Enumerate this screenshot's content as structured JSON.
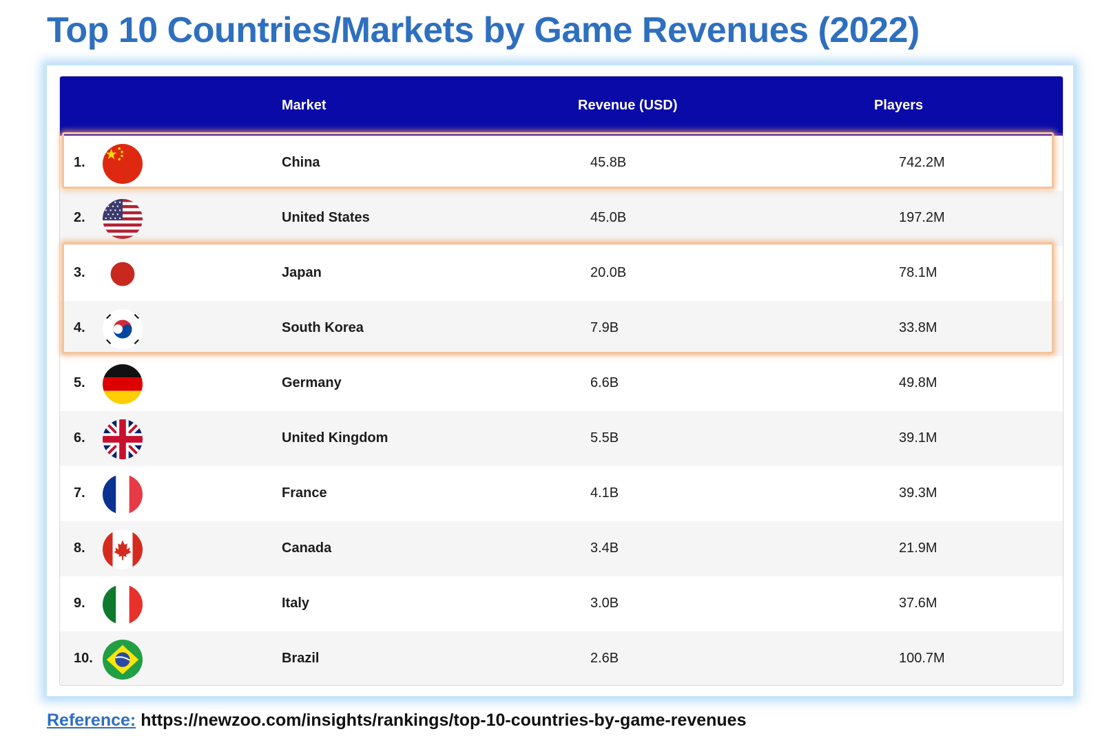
{
  "title": "Top 10 Countries/Markets by Game Revenues (2022)",
  "table": {
    "headers": {
      "market": "Market",
      "revenue": "Revenue (USD)",
      "players": "Players"
    },
    "rows": [
      {
        "rank": "1.",
        "market": "China",
        "revenue": "45.8B",
        "players": "742.2M",
        "flag_icon": "china-flag-icon"
      },
      {
        "rank": "2.",
        "market": "United States",
        "revenue": "45.0B",
        "players": "197.2M",
        "flag_icon": "united-states-flag-icon"
      },
      {
        "rank": "3.",
        "market": "Japan",
        "revenue": "20.0B",
        "players": "78.1M",
        "flag_icon": "japan-flag-icon"
      },
      {
        "rank": "4.",
        "market": "South Korea",
        "revenue": "7.9B",
        "players": "33.8M",
        "flag_icon": "south-korea-flag-icon"
      },
      {
        "rank": "5.",
        "market": "Germany",
        "revenue": "6.6B",
        "players": "49.8M",
        "flag_icon": "germany-flag-icon"
      },
      {
        "rank": "6.",
        "market": "United Kingdom",
        "revenue": "5.5B",
        "players": "39.1M",
        "flag_icon": "united-kingdom-flag-icon"
      },
      {
        "rank": "7.",
        "market": "France",
        "revenue": "4.1B",
        "players": "39.3M",
        "flag_icon": "france-flag-icon"
      },
      {
        "rank": "8.",
        "market": "Canada",
        "revenue": "3.4B",
        "players": "21.9M",
        "flag_icon": "canada-flag-icon"
      },
      {
        "rank": "9.",
        "market": "Italy",
        "revenue": "3.0B",
        "players": "37.6M",
        "flag_icon": "italy-flag-icon"
      },
      {
        "rank": "10.",
        "market": "Brazil",
        "revenue": "2.6B",
        "players": "100.7M",
        "flag_icon": "brazil-flag-icon"
      }
    ]
  },
  "chart_data": {
    "type": "table",
    "columns": [
      "",
      "Market",
      "Revenue (USD)",
      "Players"
    ],
    "rows": [
      [
        "1.",
        "China",
        "45.8B",
        "742.2M"
      ],
      [
        "2.",
        "United States",
        "45.0B",
        "197.2M"
      ],
      [
        "3.",
        "Japan",
        "20.0B",
        "78.1M"
      ],
      [
        "4.",
        "South Korea",
        "7.9B",
        "33.8M"
      ],
      [
        "5.",
        "Germany",
        "6.6B",
        "49.8M"
      ],
      [
        "6.",
        "United Kingdom",
        "5.5B",
        "39.1M"
      ],
      [
        "7.",
        "France",
        "4.1B",
        "39.3M"
      ],
      [
        "8.",
        "Canada",
        "3.4B",
        "21.9M"
      ],
      [
        "9.",
        "Italy",
        "3.0B",
        "37.6M"
      ],
      [
        "10.",
        "Brazil",
        "2.6B",
        "100.7M"
      ]
    ],
    "highlighted_markets": [
      [
        "China"
      ],
      [
        "Japan",
        "South Korea"
      ]
    ]
  },
  "reference": {
    "label": "Reference:",
    "url": "https://newzoo.com/insights/rankings/top-10-countries-by-game-revenues"
  },
  "colors": {
    "title": "#2e6fbf",
    "header_bg": "#0a0aa8",
    "highlight": "#f3c49b",
    "frame_glow": "#7cbff0"
  }
}
